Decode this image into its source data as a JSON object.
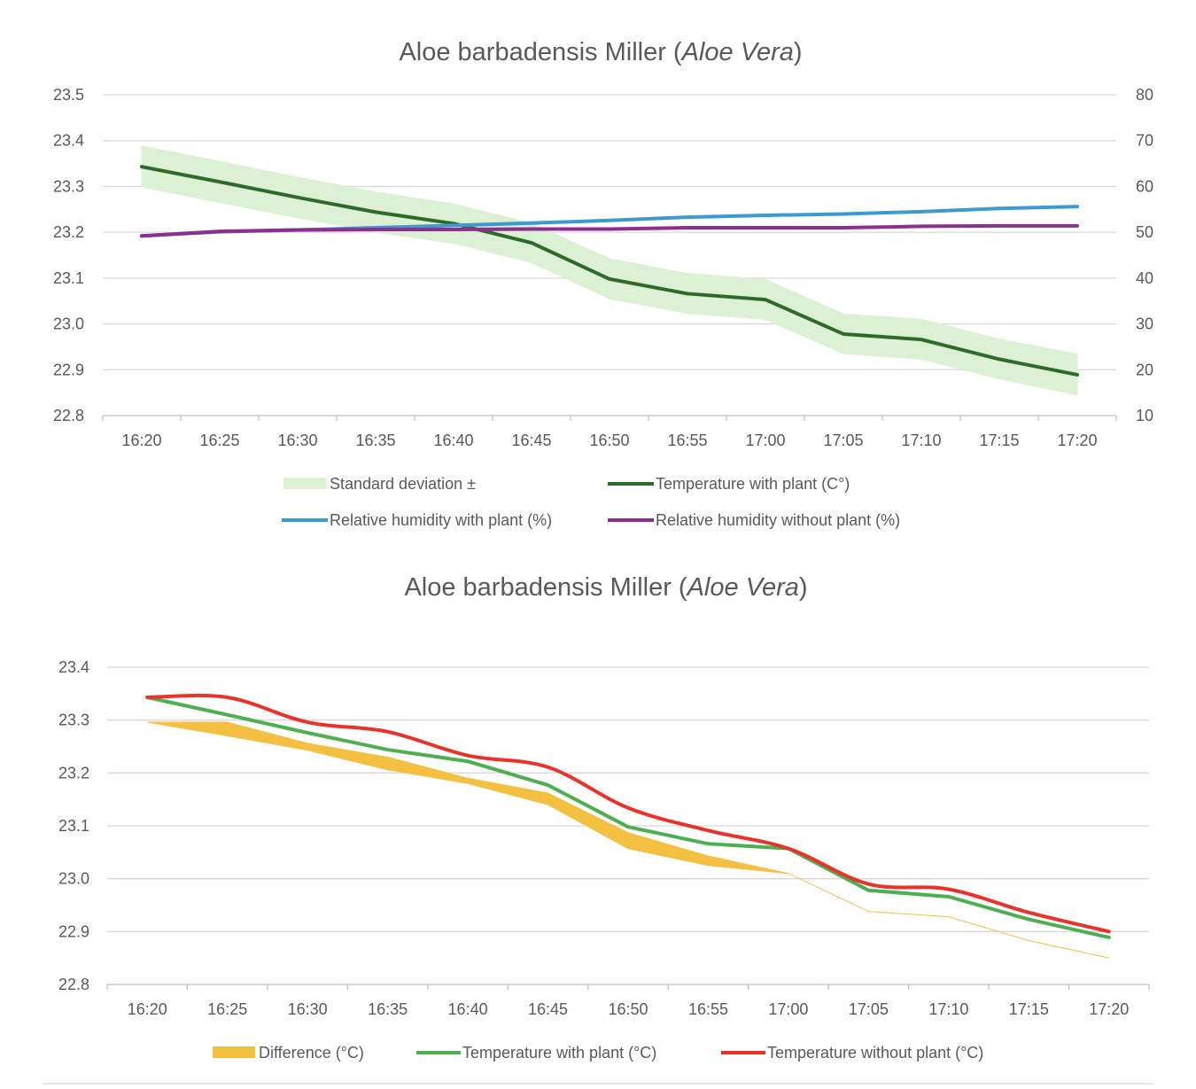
{
  "chart_data": [
    {
      "type": "line",
      "title": "Aloe barbadensis Miller (",
      "title_italic": "Aloe Vera",
      "title_end": ")",
      "categories": [
        "16:20",
        "16:25",
        "16:30",
        "16:35",
        "16:40",
        "16:45",
        "16:50",
        "16:55",
        "17:00",
        "17:05",
        "17:10",
        "17:15",
        "17:20"
      ],
      "y_left": {
        "range": [
          22.8,
          23.5
        ],
        "step": 0.1,
        "ticks": [
          "22.8",
          "22.9",
          "23.0",
          "23.1",
          "23.2",
          "23.3",
          "23.4",
          "23.5"
        ]
      },
      "y_right": {
        "range": [
          10,
          80
        ],
        "step": 10,
        "ticks": [
          "10",
          "20",
          "30",
          "40",
          "50",
          "60",
          "70",
          "80"
        ]
      },
      "grid": true,
      "legend_position": "bottom",
      "series": [
        {
          "name": "Standard deviation ±",
          "kind": "band",
          "axis": "left",
          "color": "#dcf0d4",
          "lower": [
            23.299,
            23.265,
            23.232,
            23.2,
            23.176,
            23.134,
            23.055,
            23.023,
            23.01,
            22.935,
            22.923,
            22.88,
            22.845
          ],
          "upper": [
            23.388,
            23.355,
            23.32,
            23.288,
            23.262,
            23.22,
            23.142,
            23.11,
            23.097,
            23.022,
            23.01,
            22.967,
            22.934
          ]
        },
        {
          "name": "Temperature with plant (C°)",
          "kind": "line",
          "axis": "left",
          "color": "#2e6b2a",
          "values": [
            23.343,
            23.31,
            23.276,
            23.244,
            23.219,
            23.177,
            23.098,
            23.066,
            23.053,
            22.978,
            22.966,
            22.923,
            22.889
          ]
        },
        {
          "name": "Relative humidity with plant (%)",
          "kind": "line",
          "axis": "right",
          "color": "#3d9ad1",
          "values": [
            49.2,
            50.1,
            50.5,
            51.0,
            51.5,
            52.0,
            52.6,
            53.3,
            53.7,
            54.0,
            54.5,
            55.2,
            55.6
          ]
        },
        {
          "name": "Relative humidity without plant (%)",
          "kind": "line",
          "axis": "right",
          "color": "#8e2f8f",
          "values": [
            49.2,
            50.2,
            50.5,
            50.6,
            50.6,
            50.7,
            50.7,
            51.0,
            51.0,
            51.0,
            51.3,
            51.4,
            51.4
          ]
        }
      ]
    },
    {
      "type": "line",
      "title": "Aloe barbadensis Miller (",
      "title_italic": "Aloe Vera",
      "title_end": ")",
      "categories": [
        "16:20",
        "16:25",
        "16:30",
        "16:35",
        "16:40",
        "16:45",
        "16:50",
        "16:55",
        "17:00",
        "17:05",
        "17:10",
        "17:15",
        "17:20"
      ],
      "y_left": {
        "range": [
          22.8,
          23.4
        ],
        "step": 0.1,
        "ticks": [
          "22.8",
          "22.9",
          "23.0",
          "23.1",
          "23.2",
          "23.3",
          "23.4"
        ]
      },
      "grid": true,
      "legend_position": "bottom",
      "series": [
        {
          "name": "Difference (°C)",
          "kind": "band",
          "axis": "left",
          "color": "#f4c042",
          "lower": [
            23.296,
            23.27,
            23.243,
            23.206,
            23.18,
            23.14,
            23.057,
            23.025,
            23.01,
            22.938,
            22.928,
            22.883,
            22.85
          ],
          "upper": [
            23.296,
            23.296,
            23.256,
            23.23,
            23.19,
            23.162,
            23.087,
            23.043,
            23.01,
            22.938,
            22.928,
            22.883,
            22.85
          ]
        },
        {
          "name": "Temperature with plant (°C)",
          "kind": "line",
          "axis": "left",
          "color": "#4caf50",
          "values": [
            23.343,
            23.31,
            23.276,
            23.244,
            23.222,
            23.177,
            23.098,
            23.066,
            23.057,
            22.978,
            22.966,
            22.923,
            22.889
          ]
        },
        {
          "name": "Temperature without plant (°C)",
          "kind": "line",
          "axis": "left",
          "color": "#e8332a",
          "smooth": true,
          "values": [
            23.343,
            23.343,
            23.296,
            23.278,
            23.233,
            23.211,
            23.134,
            23.091,
            23.057,
            22.99,
            22.98,
            22.936,
            22.9
          ]
        }
      ]
    }
  ]
}
